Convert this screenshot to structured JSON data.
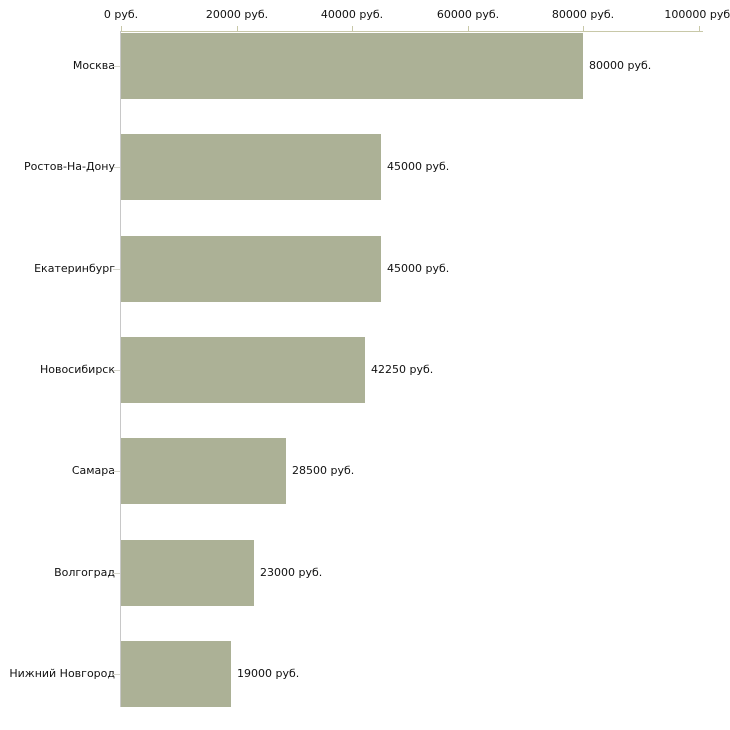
{
  "chart_data": {
    "type": "bar",
    "orientation": "horizontal",
    "title": "",
    "categories": [
      "Москва",
      "Ростов-На-Дону",
      "Екатеринбург",
      "Новосибирск",
      "Самара",
      "Волгоград",
      "Нижний Новгород"
    ],
    "values": [
      80000,
      45000,
      45000,
      42250,
      28500,
      23000,
      19000
    ],
    "value_labels": [
      "80000 руб.",
      "45000 руб.",
      "45000 руб.",
      "42250 руб.",
      "28500 руб.",
      "23000 руб.",
      "19000 руб."
    ],
    "x_ticks": [
      "0 руб.",
      "20000 руб.",
      "40000 руб.",
      "60000 руб.",
      "80000 руб.",
      "100000 руб."
    ],
    "xlim": [
      0,
      100000
    ],
    "ylabel": "",
    "xlabel": "",
    "grid": false,
    "legend": false,
    "axis_position": "top",
    "colors": {
      "bar": "#acb196",
      "x_axis": "#c8c8a8",
      "y_axis": "#c8c8c8",
      "category_tick": "#d6d6cc",
      "text": "#111111",
      "background": "#ffffff"
    }
  }
}
